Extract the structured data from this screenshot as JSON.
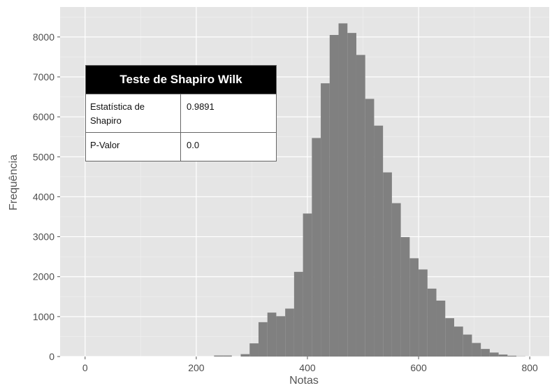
{
  "chart_data": {
    "type": "bar",
    "title": "",
    "xlabel": "Notas",
    "ylabel": "Frequência",
    "xlim": [
      -45,
      835
    ],
    "ylim": [
      0,
      8750
    ],
    "grid": true,
    "bar_color": "#808080",
    "background_color": "#e5e5e5",
    "x_ticks": [
      "0",
      "200",
      "400",
      "600",
      "800"
    ],
    "y_ticks": [
      "0",
      "1000",
      "2000",
      "3000",
      "4000",
      "5000",
      "6000",
      "7000",
      "8000"
    ],
    "bin_width": 16,
    "bins": [
      {
        "x0": 232,
        "value": 25
      },
      {
        "x0": 248,
        "value": 25
      },
      {
        "x0": 264,
        "value": 0
      },
      {
        "x0": 280,
        "value": 60
      },
      {
        "x0": 296,
        "value": 330
      },
      {
        "x0": 312,
        "value": 860
      },
      {
        "x0": 328,
        "value": 1100
      },
      {
        "x0": 344,
        "value": 1010
      },
      {
        "x0": 360,
        "value": 1200
      },
      {
        "x0": 376,
        "value": 2120
      },
      {
        "x0": 392,
        "value": 3580
      },
      {
        "x0": 408,
        "value": 5470
      },
      {
        "x0": 424,
        "value": 6840
      },
      {
        "x0": 440,
        "value": 8050
      },
      {
        "x0": 456,
        "value": 8340
      },
      {
        "x0": 472,
        "value": 8100
      },
      {
        "x0": 488,
        "value": 7550
      },
      {
        "x0": 504,
        "value": 6450
      },
      {
        "x0": 520,
        "value": 5780
      },
      {
        "x0": 536,
        "value": 4610
      },
      {
        "x0": 552,
        "value": 3840
      },
      {
        "x0": 568,
        "value": 2990
      },
      {
        "x0": 584,
        "value": 2460
      },
      {
        "x0": 600,
        "value": 2180
      },
      {
        "x0": 616,
        "value": 1700
      },
      {
        "x0": 632,
        "value": 1400
      },
      {
        "x0": 648,
        "value": 960
      },
      {
        "x0": 664,
        "value": 750
      },
      {
        "x0": 680,
        "value": 550
      },
      {
        "x0": 696,
        "value": 340
      },
      {
        "x0": 712,
        "value": 190
      },
      {
        "x0": 728,
        "value": 100
      },
      {
        "x0": 744,
        "value": 50
      },
      {
        "x0": 760,
        "value": 20
      },
      {
        "x0": 776,
        "value": 5
      }
    ]
  },
  "stats_table": {
    "title": "Teste de Shapiro Wilk",
    "rows": [
      {
        "label": "Estatística de Shapiro",
        "value": "0.9891"
      },
      {
        "label": "P-Valor",
        "value": "0.0"
      }
    ]
  }
}
